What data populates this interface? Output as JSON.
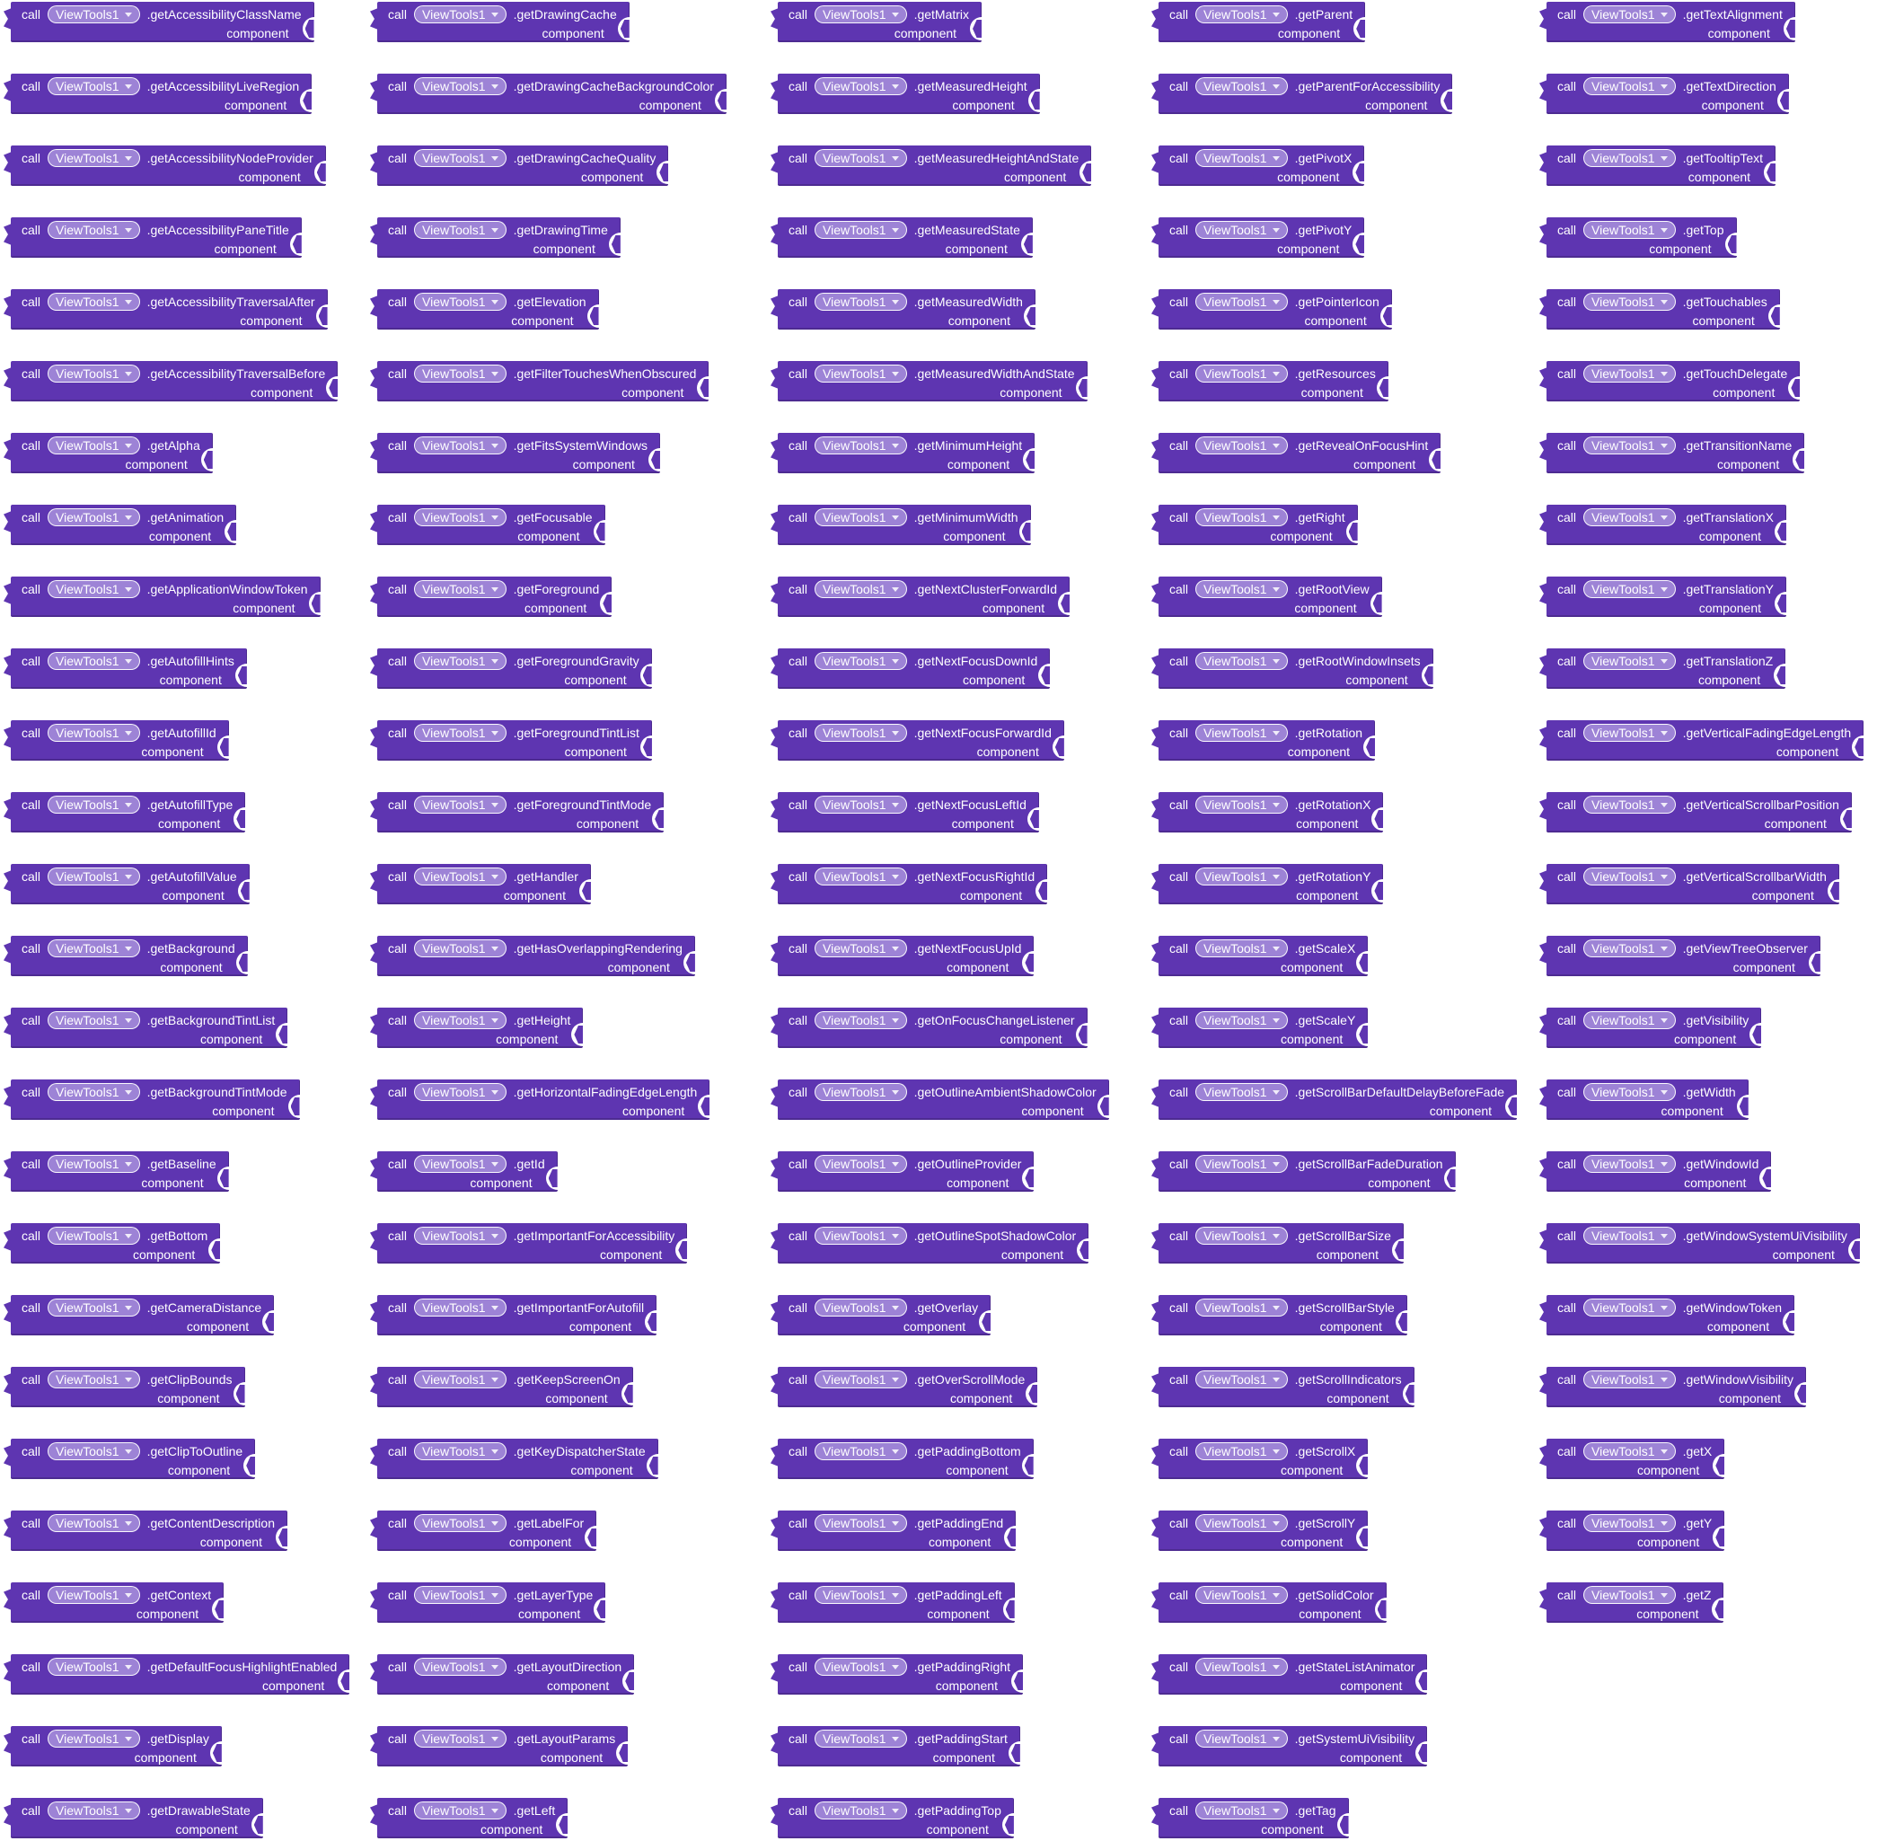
{
  "labels": {
    "call": "call",
    "instance": "ViewTools1",
    "component_param": "component"
  },
  "icons": {
    "dropdown_arrow": "triangle-down"
  },
  "colors": {
    "block": "#5e35b1",
    "dropdown_pill": "#9d83d6",
    "block_text": "#ffffff",
    "canvas": "#ffffff"
  },
  "columns": [
    {
      "methods": [
        ".getAccessibilityClassName",
        ".getAccessibilityLiveRegion",
        ".getAccessibilityNodeProvider",
        ".getAccessibilityPaneTitle",
        ".getAccessibilityTraversalAfter",
        ".getAccessibilityTraversalBefore",
        ".getAlpha",
        ".getAnimation",
        ".getApplicationWindowToken",
        ".getAutofillHints",
        ".getAutofillId",
        ".getAutofillType",
        ".getAutofillValue",
        ".getBackground",
        ".getBackgroundTintList",
        ".getBackgroundTintMode",
        ".getBaseline",
        ".getBottom",
        ".getCameraDistance",
        ".getClipBounds",
        ".getClipToOutline",
        ".getContentDescription",
        ".getContext",
        ".getDefaultFocusHighlightEnabled",
        ".getDisplay",
        ".getDrawableState"
      ]
    },
    {
      "methods": [
        ".getDrawingCache",
        ".getDrawingCacheBackgroundColor",
        ".getDrawingCacheQuality",
        ".getDrawingTime",
        ".getElevation",
        ".getFilterTouchesWhenObscured",
        ".getFitsSystemWindows",
        ".getFocusable",
        ".getForeground",
        ".getForegroundGravity",
        ".getForegroundTintList",
        ".getForegroundTintMode",
        ".getHandler",
        ".getHasOverlappingRendering",
        ".getHeight",
        ".getHorizontalFadingEdgeLength",
        ".getId",
        ".getImportantForAccessibility",
        ".getImportantForAutofill",
        ".getKeepScreenOn",
        ".getKeyDispatcherState",
        ".getLabelFor",
        ".getLayerType",
        ".getLayoutDirection",
        ".getLayoutParams",
        ".getLeft"
      ]
    },
    {
      "methods": [
        ".getMatrix",
        ".getMeasuredHeight",
        ".getMeasuredHeightAndState",
        ".getMeasuredState",
        ".getMeasuredWidth",
        ".getMeasuredWidthAndState",
        ".getMinimumHeight",
        ".getMinimumWidth",
        ".getNextClusterForwardId",
        ".getNextFocusDownId",
        ".getNextFocusForwardId",
        ".getNextFocusLeftId",
        ".getNextFocusRightId",
        ".getNextFocusUpId",
        ".getOnFocusChangeListener",
        ".getOutlineAmbientShadowColor",
        ".getOutlineProvider",
        ".getOutlineSpotShadowColor",
        ".getOverlay",
        ".getOverScrollMode",
        ".getPaddingBottom",
        ".getPaddingEnd",
        ".getPaddingLeft",
        ".getPaddingRight",
        ".getPaddingStart",
        ".getPaddingTop"
      ]
    },
    {
      "methods": [
        ".getParent",
        ".getParentForAccessibility",
        ".getPivotX",
        ".getPivotY",
        ".getPointerIcon",
        ".getResources",
        ".getRevealOnFocusHint",
        ".getRight",
        ".getRootView",
        ".getRootWindowInsets",
        ".getRotation",
        ".getRotationX",
        ".getRotationY",
        ".getScaleX",
        ".getScaleY",
        ".getScrollBarDefaultDelayBeforeFade",
        ".getScrollBarFadeDuration",
        ".getScrollBarSize",
        ".getScrollBarStyle",
        ".getScrollIndicators",
        ".getScrollX",
        ".getScrollY",
        ".getSolidColor",
        ".getStateListAnimator",
        ".getSystemUiVisibility",
        ".getTag"
      ]
    },
    {
      "methods": [
        ".getTextAlignment",
        ".getTextDirection",
        ".getTooltipText",
        ".getTop",
        ".getTouchables",
        ".getTouchDelegate",
        ".getTransitionName",
        ".getTranslationX",
        ".getTranslationY",
        ".getTranslationZ",
        ".getVerticalFadingEdgeLength",
        ".getVerticalScrollbarPosition",
        ".getVerticalScrollbarWidth",
        ".getViewTreeObserver",
        ".getVisibility",
        ".getWidth",
        ".getWindowId",
        ".getWindowSystemUiVisibility",
        ".getWindowToken",
        ".getWindowVisibility",
        ".getX",
        ".getY",
        ".getZ"
      ]
    }
  ]
}
